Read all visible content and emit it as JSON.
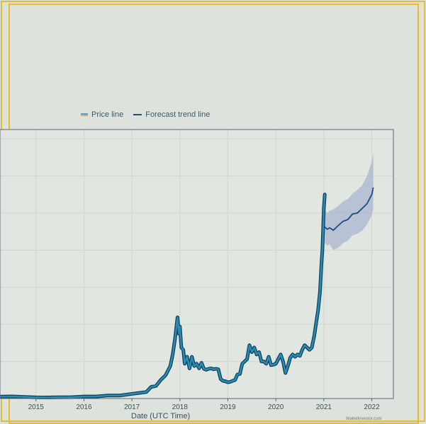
{
  "chart_data": {
    "type": "line",
    "title": "",
    "xlabel": "Date (UTC Time)",
    "ylabel": "",
    "grid": true,
    "legend_position": "top-left",
    "x_tick_labels": [
      "2015",
      "2016",
      "2017",
      "2018",
      "2019",
      "2020",
      "2021",
      "2022"
    ],
    "xlim": [
      2014.25,
      2022.45
    ],
    "ylim": [
      0,
      58000
    ],
    "series": [
      {
        "name": "Price line",
        "color": "#2a8ab0",
        "x": [
          2014.25,
          2014.5,
          2014.75,
          2015.0,
          2015.25,
          2015.5,
          2015.75,
          2016.0,
          2016.25,
          2016.5,
          2016.75,
          2017.0,
          2017.15,
          2017.3,
          2017.4,
          2017.5,
          2017.6,
          2017.7,
          2017.8,
          2017.85,
          2017.9,
          2017.95,
          2017.98,
          2018.0,
          2018.03,
          2018.07,
          2018.1,
          2018.15,
          2018.2,
          2018.25,
          2018.3,
          2018.35,
          2018.4,
          2018.45,
          2018.5,
          2018.55,
          2018.6,
          2018.65,
          2018.7,
          2018.75,
          2018.8,
          2018.85,
          2018.9,
          2018.95,
          2019.0,
          2019.05,
          2019.1,
          2019.15,
          2019.2,
          2019.25,
          2019.3,
          2019.35,
          2019.4,
          2019.45,
          2019.5,
          2019.55,
          2019.6,
          2019.65,
          2019.7,
          2019.75,
          2019.8,
          2019.85,
          2019.9,
          2019.95,
          2020.0,
          2020.05,
          2020.1,
          2020.15,
          2020.2,
          2020.25,
          2020.3,
          2020.35,
          2020.4,
          2020.45,
          2020.5,
          2020.55,
          2020.6,
          2020.65,
          2020.7,
          2020.75,
          2020.8,
          2020.85,
          2020.88,
          2020.92,
          2020.95,
          2020.97,
          2021.0,
          2021.02
        ],
        "values": [
          400,
          450,
          350,
          250,
          230,
          260,
          280,
          430,
          440,
          650,
          650,
          1000,
          1200,
          1400,
          2500,
          2700,
          4000,
          5000,
          7000,
          9500,
          13000,
          17500,
          14000,
          15500,
          11000,
          10500,
          7500,
          9000,
          6500,
          9000,
          7000,
          7500,
          6500,
          7700,
          6400,
          6200,
          6400,
          6500,
          6300,
          6400,
          6300,
          4200,
          3800,
          3700,
          3500,
          3600,
          3800,
          4000,
          5200,
          5300,
          7500,
          8000,
          8500,
          11500,
          10000,
          11000,
          9500,
          10000,
          8000,
          8000,
          7500,
          9000,
          7200,
          7300,
          7500,
          8500,
          9500,
          8000,
          5500,
          7000,
          8800,
          9500,
          9000,
          9500,
          9200,
          10500,
          11500,
          11000,
          10500,
          11000,
          13500,
          17000,
          19000,
          23000,
          29000,
          32000,
          41000,
          44000
        ]
      },
      {
        "name": "Forecast trend line",
        "color": "#1f4b85",
        "x": [
          2021.02,
          2021.07,
          2021.12,
          2021.2,
          2021.3,
          2021.4,
          2021.5,
          2021.6,
          2021.7,
          2021.8,
          2021.9,
          2022.0,
          2022.03
        ],
        "values": [
          37000,
          36500,
          36800,
          36300,
          37300,
          38200,
          38600,
          39800,
          40000,
          41000,
          42000,
          44000,
          45500
        ],
        "upper": [
          40500,
          40000,
          40500,
          40800,
          41500,
          42500,
          43000,
          44200,
          45000,
          46000,
          48000,
          51000,
          53000
        ],
        "lower": [
          33500,
          33000,
          33300,
          32000,
          32500,
          33500,
          34000,
          35200,
          35500,
          36200,
          37500,
          39500,
          41000
        ]
      }
    ],
    "watermark": "WalletInvestor.com"
  }
}
